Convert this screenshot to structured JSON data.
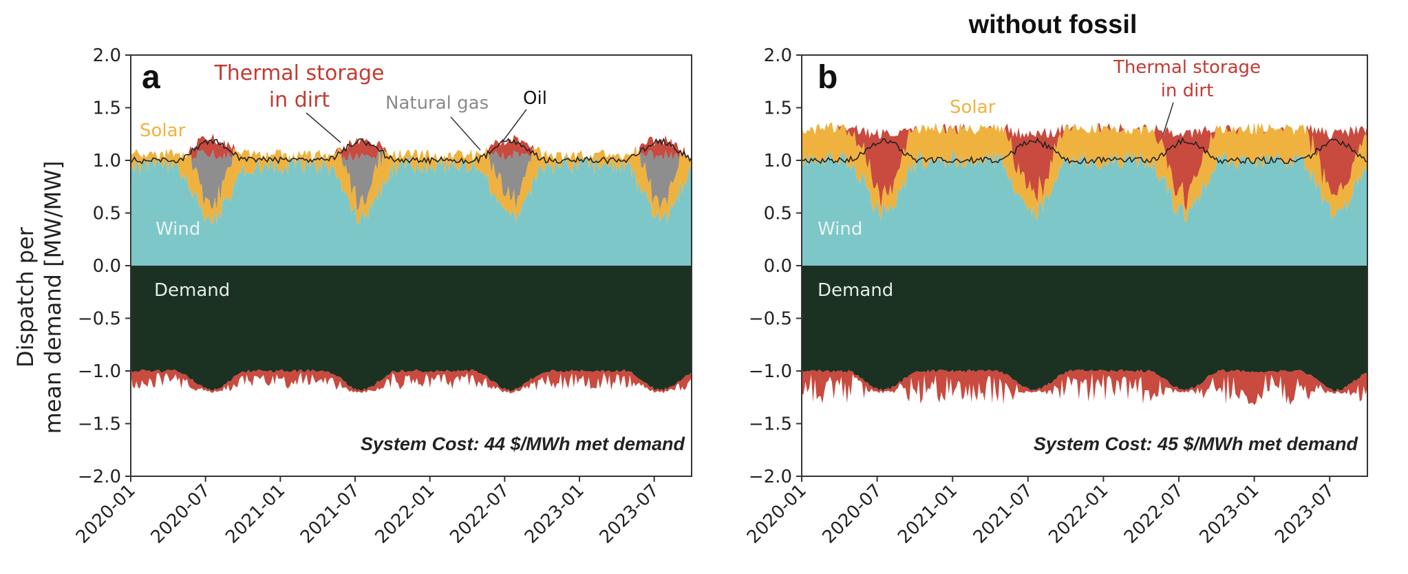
{
  "figure_title": "without fossil",
  "colors": {
    "wind": "#7ec7c9",
    "solar": "#f0b23e",
    "thermal": "#c94a3f",
    "gas": "#8e8e8e",
    "oil": "#b3322b",
    "demand": "#1b3223",
    "demand_line": "#222222"
  },
  "chart_data": [
    {
      "type": "area",
      "panel": "a",
      "ylabel": [
        "Dispatch per",
        "mean demand [MW/MW]"
      ],
      "ylim": [
        -2.0,
        2.0
      ],
      "yticks": [
        "2.0",
        "1.5",
        "1.0",
        "0.5",
        "0.0",
        "−0.5",
        "−1.0",
        "−1.5",
        "−2.0"
      ],
      "xticks": [
        "2020-01",
        "2020-07",
        "2021-01",
        "2021-07",
        "2022-01",
        "2022-07",
        "2023-01",
        "2023-07"
      ],
      "x_range": [
        "2020-01",
        "2023-10"
      ],
      "series_names": [
        "Wind",
        "Solar",
        "Natural gas",
        "Oil",
        "Thermal storage in dirt",
        "Demand"
      ],
      "labels": {
        "solar": "Solar",
        "wind": "Wind",
        "demand": "Demand",
        "thermal_line1": "Thermal storage",
        "thermal_line2": "in dirt",
        "gas": "Natural gas",
        "oil": "Oil"
      },
      "cost": "System Cost: 44 $/MWh met demand",
      "summer_peak_total": 1.2,
      "winter_total": 1.05,
      "summer_wind_min": 0.45,
      "winter_wind": 0.95,
      "summer_charge_min": -1.2,
      "winter_charge_min": -1.1,
      "has_fossil": true
    },
    {
      "type": "area",
      "panel": "b",
      "ylim": [
        -2.0,
        2.0
      ],
      "yticks": [
        "2.0",
        "1.5",
        "1.0",
        "0.5",
        "0.0",
        "−0.5",
        "−1.0",
        "−1.5",
        "−2.0"
      ],
      "xticks": [
        "2020-01",
        "2020-07",
        "2021-01",
        "2021-07",
        "2022-01",
        "2022-07",
        "2023-01",
        "2023-07"
      ],
      "x_range": [
        "2020-01",
        "2023-10"
      ],
      "series_names": [
        "Wind",
        "Solar",
        "Thermal storage in dirt",
        "Demand"
      ],
      "labels": {
        "solar": "Solar",
        "wind": "Wind",
        "demand": "Demand",
        "thermal_line1": "Thermal storage",
        "thermal_line2": "in dirt"
      },
      "cost": "System Cost: 45 $/MWh met demand",
      "summer_peak_total": 1.25,
      "winter_total": 1.3,
      "summer_wind_min": 0.5,
      "winter_wind": 1.0,
      "summer_charge_min": -1.2,
      "winter_charge_min": -1.4,
      "has_fossil": false
    }
  ]
}
